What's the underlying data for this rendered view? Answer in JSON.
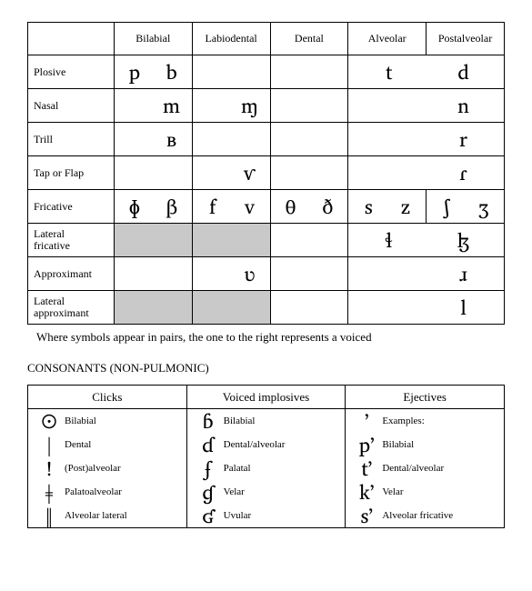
{
  "pulmonic": {
    "places": [
      "Bilabial",
      "Labiodental",
      "Dental",
      "Alveolar",
      "Postalveolar"
    ],
    "rows": [
      {
        "manner": "Plosive",
        "cells": [
          [
            "p",
            "b"
          ],
          [
            "",
            ""
          ],
          [
            "",
            ""
          ],
          [
            "t",
            "d"
          ],
          [
            "",
            ""
          ]
        ],
        "shaded": [
          false,
          false,
          false,
          false,
          false
        ],
        "merge34": true
      },
      {
        "manner": "Nasal",
        "cells": [
          [
            "",
            "m"
          ],
          [
            "",
            "ɱ"
          ],
          [
            "",
            ""
          ],
          [
            "",
            "n"
          ],
          [
            "",
            ""
          ]
        ],
        "shaded": [
          false,
          false,
          false,
          false,
          false
        ],
        "merge34": true
      },
      {
        "manner": "Trill",
        "cells": [
          [
            "",
            "ʙ"
          ],
          [
            "",
            ""
          ],
          [
            "",
            ""
          ],
          [
            "",
            "r"
          ],
          [
            "",
            ""
          ]
        ],
        "shaded": [
          false,
          false,
          false,
          false,
          false
        ],
        "merge34": true
      },
      {
        "manner": "Tap or Flap",
        "cells": [
          [
            "",
            ""
          ],
          [
            "",
            "ⱱ"
          ],
          [
            "",
            ""
          ],
          [
            "",
            "ɾ"
          ],
          [
            "",
            ""
          ]
        ],
        "shaded": [
          false,
          false,
          false,
          false,
          false
        ],
        "merge34": true
      },
      {
        "manner": "Fricative",
        "cells": [
          [
            "ɸ",
            "β"
          ],
          [
            "f",
            "v"
          ],
          [
            "θ",
            "ð"
          ],
          [
            "s",
            "z"
          ],
          [
            "ʃ",
            "ʒ"
          ]
        ],
        "shaded": [
          false,
          false,
          false,
          false,
          false
        ],
        "merge34": false
      },
      {
        "manner": "Lateral fricative",
        "twoLine": true,
        "cells": [
          [
            "",
            ""
          ],
          [
            "",
            ""
          ],
          [
            "",
            ""
          ],
          [
            "ɬ",
            "ɮ"
          ],
          [
            "",
            ""
          ]
        ],
        "shaded": [
          true,
          true,
          false,
          false,
          false
        ],
        "merge34": true
      },
      {
        "manner": "Approximant",
        "cells": [
          [
            "",
            ""
          ],
          [
            "",
            "ʋ"
          ],
          [
            "",
            ""
          ],
          [
            "",
            "ɹ"
          ],
          [
            "",
            ""
          ]
        ],
        "shaded": [
          false,
          false,
          false,
          false,
          false
        ],
        "merge34": true
      },
      {
        "manner": "Lateral approximant",
        "twoLine": true,
        "cells": [
          [
            "",
            ""
          ],
          [
            "",
            ""
          ],
          [
            "",
            ""
          ],
          [
            "",
            "l"
          ],
          [
            "",
            ""
          ]
        ],
        "shaded": [
          true,
          true,
          false,
          false,
          false
        ],
        "merge34": true
      }
    ],
    "caption": "Where symbols appear in pairs, the one to the right represents a voiced"
  },
  "nonPulmonic": {
    "title": "CONSONANTS (NON-PULMONIC)",
    "headers": [
      "Clicks",
      "Voiced implosives",
      "Ejectives"
    ],
    "rows": [
      [
        {
          "sym": "ʘ",
          "label": "Bilabial"
        },
        {
          "sym": "ɓ",
          "label": "Bilabial"
        },
        {
          "sym": "ʼ",
          "label": "Examples:"
        }
      ],
      [
        {
          "sym": "ǀ",
          "label": "Dental"
        },
        {
          "sym": "ɗ",
          "label": "Dental/alveolar"
        },
        {
          "sym": "pʼ",
          "label": "Bilabial"
        }
      ],
      [
        {
          "sym": "ǃ",
          "label": "(Post)alveolar"
        },
        {
          "sym": "ʄ",
          "label": "Palatal"
        },
        {
          "sym": "tʼ",
          "label": "Dental/alveolar"
        }
      ],
      [
        {
          "sym": "ǂ",
          "label": "Palatoalveolar"
        },
        {
          "sym": "ɠ",
          "label": "Velar"
        },
        {
          "sym": "kʼ",
          "label": "Velar"
        }
      ],
      [
        {
          "sym": "ǁ",
          "label": "Alveolar lateral"
        },
        {
          "sym": "ʛ",
          "label": "Uvular"
        },
        {
          "sym": "sʼ",
          "label": "Alveolar fricative"
        }
      ]
    ]
  }
}
